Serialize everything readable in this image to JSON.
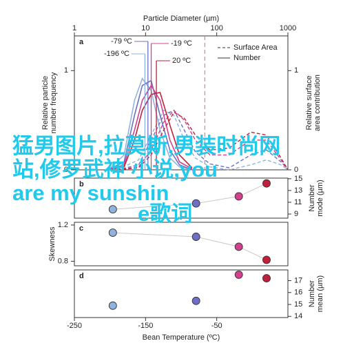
{
  "chart_data": [
    {
      "type": "line",
      "label": "a",
      "title": "Particle Diameter (µm)",
      "xscale": "log",
      "xlim": [
        1,
        1000
      ],
      "xticks": [
        1,
        10,
        100,
        1000
      ],
      "y_label": [
        "Relative particle",
        "number frequency"
      ],
      "ylim": [
        0,
        1.35
      ],
      "yticks": [
        0,
        1
      ],
      "y2_label": [
        "Relative surface",
        "area contribution"
      ],
      "y2lim": [
        0,
        1.35
      ],
      "y2ticks": [
        0,
        1
      ],
      "legend": {
        "dashed": "Surface Area",
        "solid": "Number",
        "position": "upper right"
      },
      "number_x": [
        3,
        5,
        7,
        9,
        12,
        16,
        22,
        30,
        45
      ],
      "surface_x": [
        4,
        8,
        12,
        18,
        25,
        35,
        50,
        80,
        150,
        300,
        500,
        800,
        1000
      ],
      "series": [
        {
          "name": "-196 ºC",
          "color": "#8fb3de",
          "number": [
            0,
            0.15,
            0.7,
            0.92,
            0.8,
            0.4,
            0.12,
            0.03,
            0
          ],
          "surface": [
            0,
            0.1,
            0.35,
            0.6,
            0.55,
            0.3,
            0.12,
            0.03,
            0,
            0.05,
            0.1,
            0.05,
            0
          ]
        },
        {
          "name": "-79 ºC",
          "color": "#6d6fc4",
          "number": [
            0,
            0.08,
            0.55,
            0.85,
            0.9,
            0.55,
            0.2,
            0.05,
            0
          ],
          "surface": [
            0,
            0.05,
            0.3,
            0.55,
            0.6,
            0.4,
            0.18,
            0.06,
            0.02,
            0.15,
            0.2,
            0.08,
            0
          ]
        },
        {
          "name": "-19 ºC",
          "color": "#d2418c",
          "number": [
            0,
            0.05,
            0.4,
            0.7,
            0.85,
            0.7,
            0.3,
            0.08,
            0.01
          ],
          "surface": [
            0,
            0.03,
            0.2,
            0.48,
            0.6,
            0.5,
            0.3,
            0.15,
            0.15,
            0.3,
            0.3,
            0.1,
            0
          ]
        },
        {
          "name": "20 ºC",
          "color": "#c41f3a",
          "number": [
            0,
            0.03,
            0.3,
            0.6,
            0.76,
            0.78,
            0.45,
            0.15,
            0.02
          ],
          "surface": [
            0,
            0.02,
            0.15,
            0.4,
            0.58,
            0.52,
            0.35,
            0.2,
            0.22,
            0.38,
            0.35,
            0.12,
            0
          ]
        }
      ],
      "mode_lines": true,
      "reference_line": {
        "x": 68,
        "color": "#e07aa8"
      }
    },
    {
      "type": "scatter",
      "label": "b",
      "axis_side": "right",
      "y_label": [
        "Number",
        "mode (µm)"
      ],
      "ylim": [
        8.3,
        15.1
      ],
      "yticks": [
        9,
        11,
        13,
        15
      ],
      "fit_line": true,
      "x": [
        -196,
        -79,
        -19,
        20
      ],
      "values": [
        9.8,
        10.8,
        12,
        14.2
      ]
    },
    {
      "type": "scatter",
      "label": "c",
      "axis_side": "left",
      "y_label": [
        "Skewness"
      ],
      "ylim": [
        0.75,
        1.23
      ],
      "yticks": [
        0.8,
        1.2
      ],
      "fit_line": true,
      "x": [
        -196,
        -79,
        -19,
        20
      ],
      "values": [
        1.115,
        1.07,
        0.96,
        0.815
      ]
    },
    {
      "type": "scatter",
      "label": "d",
      "axis_side": "right",
      "y_label": [
        "Number",
        "mean (µm)"
      ],
      "ylim": [
        13.9,
        17.9
      ],
      "yticks": [
        14,
        15,
        16,
        17
      ],
      "fit_line": false,
      "x": [
        -196,
        -79,
        -19,
        20
      ],
      "values": [
        14.9,
        15.3,
        17.5,
        17.2
      ]
    }
  ],
  "shared_x": {
    "label": "Bean Temperature (ºC)",
    "xlim": [
      -250,
      50
    ],
    "xticks": [
      -250,
      -150,
      -50
    ]
  },
  "point_colors": [
    "#8fb3de",
    "#6d6fc4",
    "#d2418c",
    "#c41f3a"
  ],
  "overlay_text": [
    "猛男图片,拉莫斯,男装时尚网",
    "站,修罗武神 小说,you",
    "are my sunshin",
    "e歌词"
  ]
}
